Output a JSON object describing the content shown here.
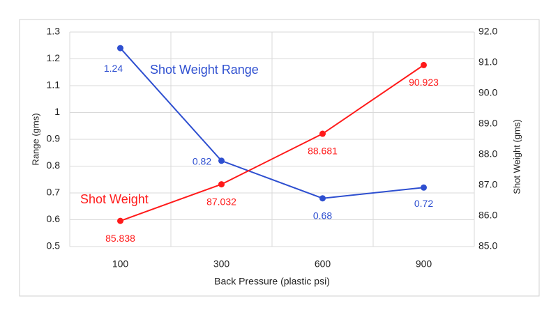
{
  "chart_data": {
    "type": "line",
    "categories": [
      "100",
      "300",
      "600",
      "900"
    ],
    "x_label": "Back Pressure (plastic psi)",
    "y_label": "Range (gms)",
    "y2_label": "Shot Weight (gms)",
    "ylim": [
      0.5,
      1.3
    ],
    "yticks": [
      0.5,
      0.6,
      0.7,
      0.8,
      0.9,
      1,
      1.1,
      1.2,
      1.3
    ],
    "y2lim": [
      85,
      92
    ],
    "y2ticks": [
      {
        "value": 85,
        "label": "85.0"
      },
      {
        "value": 86,
        "label": "86.0"
      },
      {
        "value": 87,
        "label": "87.0"
      },
      {
        "value": 88,
        "label": "88.0"
      },
      {
        "value": 89,
        "label": "89.0"
      },
      {
        "value": 90,
        "label": "90.0"
      },
      {
        "value": 91,
        "label": "91.0"
      },
      {
        "value": 92,
        "label": "92.0"
      }
    ],
    "grid": true,
    "series": [
      {
        "name": "Shot Weight Range",
        "color": "#2e4fd0",
        "values": [
          1.24,
          0.82,
          0.68,
          0.72
        ]
      },
      {
        "name": "Shot Weight",
        "color": "#ff1a1a",
        "axis": "y2",
        "values": [
          85.838,
          87.032,
          88.681,
          90.923
        ]
      }
    ]
  }
}
